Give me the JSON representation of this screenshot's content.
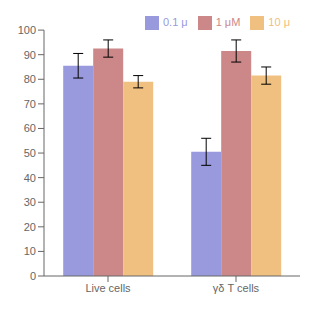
{
  "chart_data": {
    "type": "bar",
    "categories": [
      "Live cells",
      "γδ T cells"
    ],
    "series": [
      {
        "name": "0.1 μ",
        "color": "#9999dd",
        "values": [
          85.5,
          50.5
        ],
        "errors": [
          5.0,
          5.5
        ]
      },
      {
        "name": "1 μM",
        "color": "#cc8888",
        "values": [
          92.5,
          91.5
        ],
        "errors": [
          3.5,
          4.5
        ]
      },
      {
        "name": "10 μ",
        "color": "#f0c080",
        "values": [
          79.0,
          81.5
        ],
        "errors": [
          2.5,
          3.5
        ]
      }
    ],
    "ylim": [
      0,
      100
    ],
    "yticks": [
      0,
      10,
      20,
      30,
      40,
      50,
      60,
      70,
      80,
      90,
      100
    ],
    "legend": "upper right",
    "grid": false
  }
}
